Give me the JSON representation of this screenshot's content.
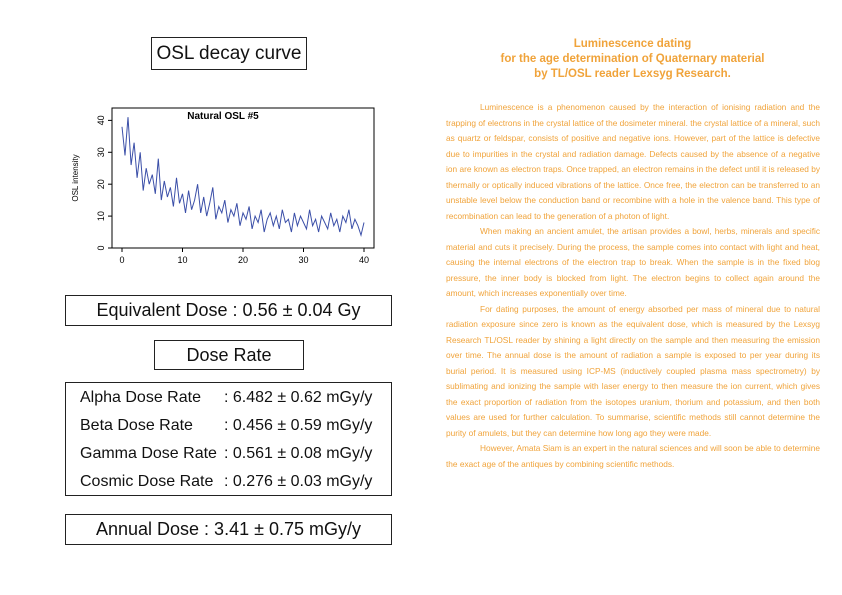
{
  "left": {
    "osl_title": "OSL decay curve",
    "equivalent_dose": "Equivalent Dose : 0.56 ± 0.04 Gy",
    "dose_rate_title": "Dose Rate",
    "dose_rates": [
      {
        "label": "Alpha Dose Rate",
        "value": ": 6.482 ± 0.62 mGy/y"
      },
      {
        "label": "Beta Dose Rate",
        "value": ": 0.456 ± 0.59 mGy/y"
      },
      {
        "label": "Gamma Dose Rate",
        "value": ": 0.561 ± 0.08 mGy/y"
      },
      {
        "label": "Cosmic Dose Rate",
        "value": ": 0.276 ± 0.03 mGy/y"
      }
    ],
    "annual_dose": "Annual Dose : 3.41 ± 0.75 mGy/y"
  },
  "chart_data": {
    "type": "line",
    "title": "Natural OSL #5",
    "xlabel": "",
    "ylabel": "OSL intensity",
    "xlim": [
      0,
      40
    ],
    "ylim": [
      0,
      42
    ],
    "xticks": [
      "0",
      "10",
      "20",
      "30",
      "40"
    ],
    "yticks": [
      "0",
      "10",
      "20",
      "30",
      "40"
    ],
    "grid": false,
    "color": "#3B4FA8",
    "series": [
      {
        "x": [
          0,
          0.5,
          1,
          1.5,
          2,
          2.5,
          3,
          3.5,
          4,
          4.5,
          5,
          5.5,
          6,
          6.5,
          7,
          7.5,
          8,
          8.5,
          9,
          9.5,
          10,
          10.5,
          11,
          11.5,
          12,
          12.5,
          13,
          13.5,
          14,
          14.5,
          15,
          15.5,
          16,
          16.5,
          17,
          17.5,
          18,
          18.5,
          19,
          19.5,
          20,
          20.5,
          21,
          21.5,
          22,
          22.5,
          23,
          23.5,
          24,
          24.5,
          25,
          25.5,
          26,
          26.5,
          27,
          27.5,
          28,
          28.5,
          29,
          29.5,
          30,
          30.5,
          31,
          31.5,
          32,
          32.5,
          33,
          33.5,
          34,
          34.5,
          35,
          35.5,
          36,
          36.5,
          37,
          37.5,
          38,
          38.5,
          39,
          39.5,
          40
        ],
        "y": [
          38,
          29,
          41,
          26,
          33,
          22,
          30,
          18,
          25,
          20,
          23,
          17,
          28,
          15,
          21,
          16,
          19,
          13,
          22,
          14,
          17,
          11,
          18,
          12,
          15,
          20,
          11,
          16,
          10,
          14,
          19,
          9,
          13,
          11,
          15,
          8,
          12,
          10,
          14,
          7,
          11,
          9,
          13,
          6,
          10,
          8,
          12,
          5,
          9,
          11,
          7,
          10,
          6,
          12,
          8,
          9,
          5,
          11,
          7,
          10,
          8,
          6,
          12,
          7,
          9,
          5,
          10,
          8,
          6,
          11,
          7,
          9,
          5,
          10,
          8,
          12,
          6,
          9,
          7,
          4,
          8
        ]
      }
    ]
  },
  "right": {
    "title_lines": [
      "Luminescence dating",
      "for the age determination of Quaternary material",
      "by TL/OSL reader Lexsyg Research."
    ],
    "paragraphs": [
      "Luminescence is a phenomenon caused by the interaction of ionising radiation and the trapping of electrons in the crystal lattice of the dosimeter mineral. the crystal lattice of a mineral, such as quartz or feldspar, consists of positive and negative ions. However, part of the lattice is defective due to impurities in the crystal and radiation damage. Defects caused by the absence of a negative ion are known as electron traps. Once trapped, an electron remains in the defect until it is released by thermally or optically induced vibrations of the lattice. Once free, the electron can be transferred to an unstable level below the conduction band or recombine with a hole in the valence band. This type of recombination can lead to the generation of a photon of light.",
      "When making an ancient amulet, the artisan provides a bowl, herbs, minerals and specific material and cuts it precisely. During the process, the sample comes into contact with light and heat, causing the internal electrons of the electron trap to break. When the sample is in the fixed blog pressure, the inner body is blocked from light. The electron begins to collect again around the amount, which increases exponentially over time.",
      "For dating purposes, the amount of energy absorbed per mass of mineral due to natural radiation exposure since zero is known as the equivalent dose, which is measured by the Lexsyg Research TL/OSL reader by shining a light directly on the sample and then measuring the emission over time. The annual dose is the amount of radiation a sample is exposed to per year during its burial period. It is measured using ICP-MS (inductively coupled plasma mass spectrometry) by sublimating and ionizing the sample with laser energy to then measure the ion current, which gives the exact proportion of radiation from the isotopes uranium, thorium and potassium, and then both values are used for further calculation. To summarise, scientific methods still cannot determine the purity of amulets, but they can determine how long ago they were made.",
      "However, Amata Siam is an expert in the natural sciences and will soon be able to determine the exact age of the antiques by combining scientific methods."
    ]
  }
}
